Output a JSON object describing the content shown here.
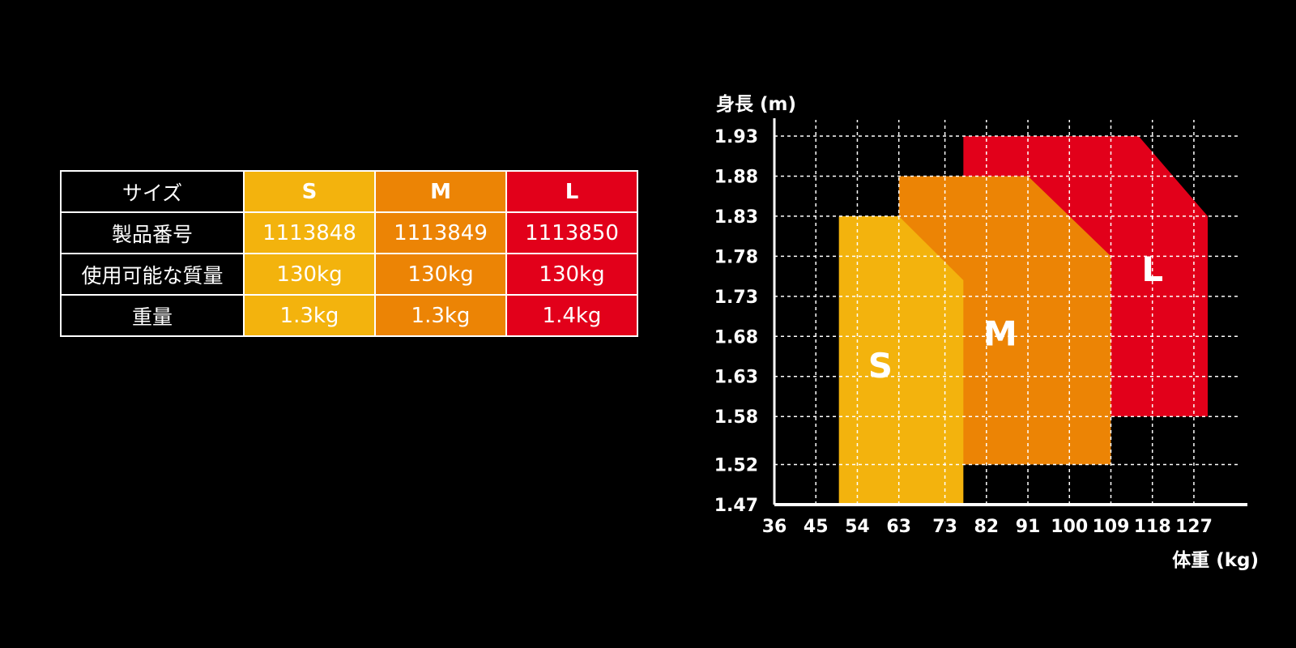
{
  "table": {
    "rows": [
      {
        "label": "サイズ",
        "values": [
          "S",
          "M",
          "L"
        ]
      },
      {
        "label": "製品番号",
        "values": [
          "1113848",
          "1113849",
          "1113850"
        ]
      },
      {
        "label": "使用可能な質量",
        "values": [
          "130kg",
          "130kg",
          "130kg"
        ]
      },
      {
        "label": "重量",
        "values": [
          "1.3kg",
          "1.3kg",
          "1.4kg"
        ]
      }
    ],
    "colors": {
      "S": "#F3B30D",
      "M": "#EC8405",
      "L": "#E2001A"
    }
  },
  "chart_data": {
    "type": "area",
    "ylabel": "身長 (m)",
    "xlabel": "体重 (kg)",
    "x_ticks": [
      36,
      45,
      54,
      63,
      73,
      82,
      91,
      100,
      109,
      118,
      127
    ],
    "y_ticks": [
      "1.47",
      "1.52",
      "1.58",
      "1.63",
      "1.68",
      "1.73",
      "1.78",
      "1.83",
      "1.88",
      "1.93"
    ],
    "grid": true,
    "series": [
      {
        "name": "L",
        "color": "#E2001A",
        "region": [
          [
            77,
            1.58
          ],
          [
            77,
            1.93
          ],
          [
            115,
            1.93
          ],
          [
            130,
            1.83
          ],
          [
            130,
            1.58
          ]
        ]
      },
      {
        "name": "M",
        "color": "#EC8405",
        "region": [
          [
            63,
            1.52
          ],
          [
            63,
            1.88
          ],
          [
            91,
            1.88
          ],
          [
            109,
            1.78
          ],
          [
            109,
            1.52
          ]
        ]
      },
      {
        "name": "S",
        "color": "#F3B30D",
        "region": [
          [
            50,
            1.47
          ],
          [
            50,
            1.83
          ],
          [
            63,
            1.83
          ],
          [
            77,
            1.75
          ],
          [
            77,
            1.47
          ]
        ]
      }
    ]
  }
}
